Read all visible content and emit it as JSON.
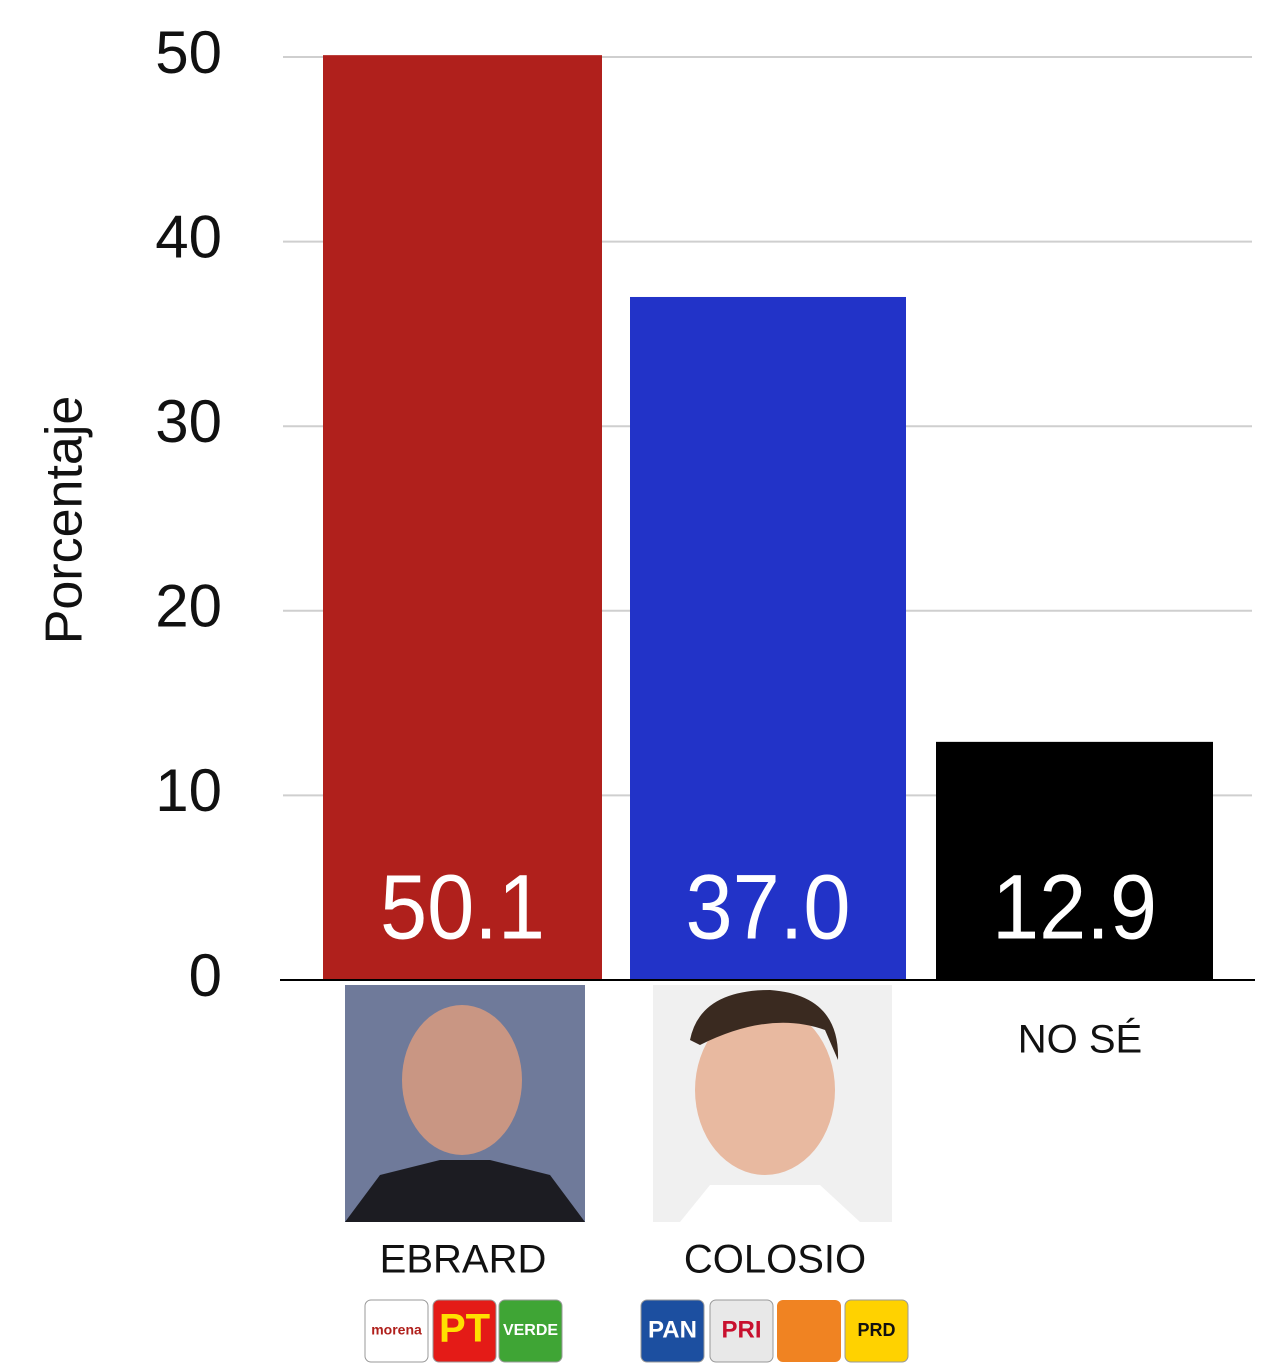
{
  "chart_data": {
    "type": "bar",
    "y_label": "Porcentaje",
    "categories": [
      "EBRARD",
      "COLOSIO",
      "NO SÉ"
    ],
    "values": [
      50.1,
      37.0,
      12.9
    ],
    "value_labels": [
      "50.1",
      "37.0",
      "12.9"
    ],
    "colors": [
      "#b0201c",
      "#2233c8",
      "#000000"
    ],
    "ylim": [
      0,
      50
    ],
    "yticks": [
      0,
      10,
      20,
      30,
      40,
      50
    ],
    "grid": true,
    "party_logos": [
      [
        "morena",
        "PT",
        "VERDE"
      ],
      [
        "PAN",
        "PRI",
        "PRD"
      ]
    ]
  }
}
